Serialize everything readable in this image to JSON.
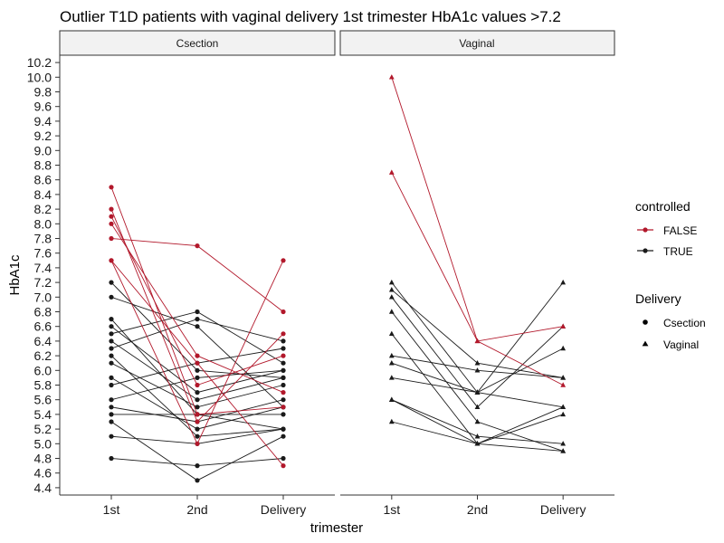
{
  "chart_data": {
    "type": "line",
    "title": "Outlier T1D patients with vaginal delivery 1st trimester HbA1c values >7.2",
    "xlabel": "trimester",
    "ylabel": "HbA1c",
    "categories": [
      "1st",
      "2nd",
      "Delivery"
    ],
    "ylim": [
      4.3,
      10.3
    ],
    "yticks": [
      "4.4",
      "4.6",
      "4.8",
      "5.0",
      "5.2",
      "5.4",
      "5.6",
      "5.8",
      "6.0",
      "6.2",
      "6.4",
      "6.6",
      "6.8",
      "7.0",
      "7.2",
      "7.4",
      "7.6",
      "7.8",
      "8.0",
      "8.2",
      "8.4",
      "8.6",
      "8.8",
      "9.0",
      "9.2",
      "9.4",
      "9.6",
      "9.8",
      "10.0",
      "10.2"
    ],
    "grid": false,
    "colors": {
      "FALSE": "#b2182b",
      "TRUE": "#1a1a1a"
    },
    "legend": {
      "placement": "right",
      "color_title": "controlled",
      "color_entries": [
        "FALSE",
        "TRUE"
      ],
      "shape_title": "Delivery",
      "shape_entries": [
        "Csection",
        "Vaginal"
      ]
    },
    "panels": [
      {
        "label": "Csection",
        "marker": "circle",
        "series": [
          {
            "controlled": "FALSE",
            "values": [
              8.5,
              5.4,
              5.5
            ]
          },
          {
            "controlled": "FALSE",
            "values": [
              8.2,
              5.3,
              6.5
            ]
          },
          {
            "controlled": "FALSE",
            "values": [
              8.1,
              5.8,
              6.2
            ]
          },
          {
            "controlled": "FALSE",
            "values": [
              8.0,
              6.2,
              5.7
            ]
          },
          {
            "controlled": "FALSE",
            "values": [
              7.8,
              7.7,
              6.8
            ]
          },
          {
            "controlled": "FALSE",
            "values": [
              7.5,
              5.0,
              7.5
            ]
          },
          {
            "controlled": "FALSE",
            "values": [
              7.5,
              6.1,
              4.7
            ]
          },
          {
            "controlled": "TRUE",
            "values": [
              7.2,
              6.0,
              5.9
            ]
          },
          {
            "controlled": "TRUE",
            "values": [
              7.0,
              6.6,
              5.5
            ]
          },
          {
            "controlled": "TRUE",
            "values": [
              6.7,
              5.4,
              5.2
            ]
          },
          {
            "controlled": "TRUE",
            "values": [
              6.6,
              5.7,
              6.0
            ]
          },
          {
            "controlled": "TRUE",
            "values": [
              6.5,
              6.8,
              6.1
            ]
          },
          {
            "controlled": "TRUE",
            "values": [
              6.4,
              5.6,
              5.9
            ]
          },
          {
            "controlled": "TRUE",
            "values": [
              6.3,
              6.7,
              6.4
            ]
          },
          {
            "controlled": "TRUE",
            "values": [
              6.2,
              5.1,
              5.2
            ]
          },
          {
            "controlled": "TRUE",
            "values": [
              6.1,
              5.5,
              5.8
            ]
          },
          {
            "controlled": "TRUE",
            "values": [
              5.9,
              5.2,
              5.5
            ]
          },
          {
            "controlled": "TRUE",
            "values": [
              5.8,
              6.1,
              6.3
            ]
          },
          {
            "controlled": "TRUE",
            "values": [
              5.6,
              5.9,
              6.0
            ]
          },
          {
            "controlled": "TRUE",
            "values": [
              5.5,
              5.3,
              5.6
            ]
          },
          {
            "controlled": "TRUE",
            "values": [
              5.4,
              5.4,
              5.4
            ]
          },
          {
            "controlled": "TRUE",
            "values": [
              5.3,
              4.5,
              5.1
            ]
          },
          {
            "controlled": "TRUE",
            "values": [
              5.1,
              5.0,
              5.2
            ]
          },
          {
            "controlled": "TRUE",
            "values": [
              4.8,
              4.7,
              4.8
            ]
          }
        ]
      },
      {
        "label": "Vaginal",
        "marker": "triangle",
        "series": [
          {
            "controlled": "FALSE",
            "values": [
              10.0,
              6.4,
              5.8
            ]
          },
          {
            "controlled": "FALSE",
            "values": [
              8.7,
              6.4,
              6.6
            ]
          },
          {
            "controlled": "TRUE",
            "values": [
              7.2,
              5.7,
              7.2
            ]
          },
          {
            "controlled": "TRUE",
            "values": [
              7.1,
              6.1,
              5.9
            ]
          },
          {
            "controlled": "TRUE",
            "values": [
              7.0,
              5.5,
              6.6
            ]
          },
          {
            "controlled": "TRUE",
            "values": [
              6.8,
              5.3,
              4.9
            ]
          },
          {
            "controlled": "TRUE",
            "values": [
              6.5,
              5.0,
              5.4
            ]
          },
          {
            "controlled": "TRUE",
            "values": [
              6.2,
              6.0,
              5.9
            ]
          },
          {
            "controlled": "TRUE",
            "values": [
              6.1,
              5.7,
              6.3
            ]
          },
          {
            "controlled": "TRUE",
            "values": [
              5.9,
              5.7,
              5.5
            ]
          },
          {
            "controlled": "TRUE",
            "values": [
              5.6,
              5.1,
              5.0
            ]
          },
          {
            "controlled": "TRUE",
            "values": [
              5.6,
              5.0,
              5.5
            ]
          },
          {
            "controlled": "TRUE",
            "values": [
              5.3,
              5.0,
              4.9
            ]
          }
        ]
      }
    ]
  }
}
